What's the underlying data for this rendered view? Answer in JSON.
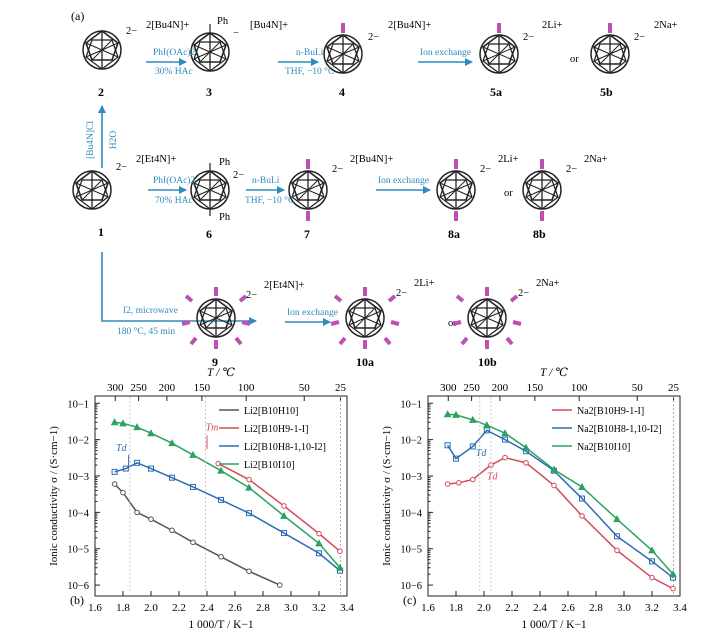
{
  "panel_a": {
    "label": "(a)",
    "compounds": {
      "c2": {
        "id": "2",
        "charge": "2−",
        "counter": "2[Bu4N]+"
      },
      "c3": {
        "id": "3",
        "charge": "−",
        "counter": "[Bu4N]+",
        "sub": "Ph"
      },
      "c4": {
        "id": "4",
        "charge": "2−",
        "counter": "2[Bu4N]+"
      },
      "c5a": {
        "id": "5a",
        "charge": "2−",
        "counter": "2Li+"
      },
      "c5b": {
        "id": "5b",
        "charge": "2−",
        "counter": "2Na+"
      },
      "c1": {
        "id": "1",
        "charge": "2−",
        "counter": "2[Et4N]+"
      },
      "c6": {
        "id": "6",
        "charge": "2−",
        "counter": "",
        "sub": "Ph"
      },
      "c7": {
        "id": "7",
        "charge": "2−",
        "counter": "2[Bu4N]+"
      },
      "c8a": {
        "id": "8a",
        "charge": "2−",
        "counter": "2Li+"
      },
      "c8b": {
        "id": "8b",
        "charge": "2−",
        "counter": "2Na+"
      },
      "c9": {
        "id": "9",
        "charge": "2−",
        "counter": "2[Et4N]+"
      },
      "c10a": {
        "id": "10a",
        "charge": "2−",
        "counter": "2Li+"
      },
      "c10b": {
        "id": "10b",
        "charge": "2−",
        "counter": "2Na+"
      }
    },
    "or": "or",
    "conditions": {
      "r1_a": "PhI(OAc)2",
      "r1_b": "30% HAc",
      "r2_a": "n-BuLi",
      "r2_b": "THF, −10 °C",
      "r3_a": "Ion exchange",
      "up_a": "[Bu4N]Cl",
      "up_b": "H2O",
      "r4_a": "PhI(OAc)2",
      "r4_b": "70% HAc",
      "r5_a": "n-BuLi",
      "r5_b": "THF, −10 °C",
      "r6_a": "Ion exchange",
      "r7_a": "I2, microwave",
      "r7_b": "180 °C, 45 min",
      "r8_a": "Ion exchange"
    },
    "colors": {
      "arrow": "#2f8bbf",
      "iodine": "#c04fb3",
      "cage": "#222222"
    }
  },
  "chart_data": [
    {
      "panel": "(b)",
      "type": "line",
      "xlabel": "1 000/T / K−1",
      "ylabel": "Ionic conductivity σ / (S·cm−1)",
      "top_xlabel": "T / ℃",
      "xlim": [
        1.6,
        3.4
      ],
      "ylim_log10": [
        -6.3,
        -0.8
      ],
      "y_scale": "log",
      "x_ticks": [
        "1.6",
        "1.8",
        "2.0",
        "2.2",
        "2.4",
        "2.6",
        "2.8",
        "3.0",
        "3.2",
        "3.4"
      ],
      "y_ticks": [
        "10−6",
        "10−5",
        "10−4",
        "10−3",
        "10−2",
        "10−1"
      ],
      "top_ticks": [
        "300",
        "250",
        "200",
        "150",
        "100",
        "50",
        "25"
      ],
      "annotations": [
        "Td",
        "Tm"
      ],
      "legend_position": "top-right",
      "series": [
        {
          "name": "Li2[B10H10]",
          "color": "#555555",
          "marker": "circle",
          "x": [
            1.74,
            1.8,
            1.9,
            2.0,
            2.15,
            2.3,
            2.5,
            2.7,
            2.92
          ],
          "y": [
            0.0006,
            0.00035,
            0.0001,
            6.5e-05,
            3.2e-05,
            1.5e-05,
            6e-06,
            2.4e-06,
            1e-06
          ]
        },
        {
          "name": "Li2[B10H9-1-I]",
          "color": "#d24b57",
          "marker": "circle",
          "x": [
            2.48,
            2.7,
            2.95,
            3.2,
            3.35
          ],
          "y": [
            0.0022,
            0.0008,
            0.00015,
            2.6e-05,
            8.5e-06
          ]
        },
        {
          "name": "Li2[B10H8-1,10-I2]",
          "color": "#2e6db5",
          "marker": "square",
          "x": [
            1.74,
            1.82,
            1.9,
            2.0,
            2.15,
            2.3,
            2.5,
            2.7,
            2.95,
            3.2,
            3.35
          ],
          "y": [
            0.0013,
            0.0016,
            0.0023,
            0.0016,
            0.0009,
            0.0005,
            0.00022,
            9.5e-05,
            2.7e-05,
            7.5e-06,
            2.5e-06
          ]
        },
        {
          "name": "Li2[B10I10]",
          "color": "#2aa35f",
          "marker": "triangle",
          "x": [
            1.74,
            1.8,
            1.9,
            2.0,
            2.15,
            2.3,
            2.5,
            2.7,
            2.95,
            3.2,
            3.35
          ],
          "y": [
            0.03,
            0.028,
            0.022,
            0.015,
            0.008,
            0.0038,
            0.0014,
            0.00048,
            8e-05,
            1.4e-05,
            3e-06
          ]
        }
      ]
    },
    {
      "panel": "(c)",
      "type": "line",
      "xlabel": "1 000/T / K−1",
      "ylabel": "Ionic conductivity σ / (S·cm−1)",
      "top_xlabel": "T / ℃",
      "xlim": [
        1.6,
        3.4
      ],
      "ylim_log10": [
        -6.3,
        -0.8
      ],
      "y_scale": "log",
      "x_ticks": [
        "1.6",
        "1.8",
        "2.0",
        "2.2",
        "2.4",
        "2.6",
        "2.8",
        "3.0",
        "3.2",
        "3.4"
      ],
      "y_ticks": [
        "10−6",
        "10−5",
        "10−4",
        "10−3",
        "10−2",
        "10−1"
      ],
      "top_ticks": [
        "300",
        "250",
        "200",
        "150",
        "100",
        "50",
        "25"
      ],
      "annotations": [
        "Td",
        "Td"
      ],
      "legend_position": "top-right",
      "series": [
        {
          "name": "Na2[B10H9-1-I]",
          "color": "#d24b57",
          "marker": "circle",
          "x": [
            1.74,
            1.82,
            1.92,
            2.05,
            2.15,
            2.3,
            2.5,
            2.7,
            2.95,
            3.2,
            3.35
          ],
          "y": [
            0.0006,
            0.00065,
            0.0008,
            0.002,
            0.0032,
            0.0023,
            0.00055,
            8e-05,
            9e-06,
            1.6e-06,
            8e-07
          ]
        },
        {
          "name": "Na2[B10H8-1,10-I2]",
          "color": "#2e6db5",
          "marker": "square",
          "x": [
            1.74,
            1.8,
            1.92,
            2.02,
            2.15,
            2.3,
            2.5,
            2.7,
            2.95,
            3.2,
            3.35
          ],
          "y": [
            0.007,
            0.003,
            0.0065,
            0.018,
            0.01,
            0.0048,
            0.0014,
            0.00024,
            2.2e-05,
            4.5e-06,
            1.6e-06
          ]
        },
        {
          "name": "Na2[B10I10]",
          "color": "#2aa35f",
          "marker": "triangle",
          "x": [
            1.74,
            1.8,
            1.92,
            2.02,
            2.15,
            2.3,
            2.5,
            2.7,
            2.95,
            3.2,
            3.35
          ],
          "y": [
            0.05,
            0.048,
            0.035,
            0.025,
            0.015,
            0.006,
            0.0015,
            0.0005,
            6.5e-05,
            9e-06,
            2e-06
          ]
        }
      ]
    }
  ]
}
